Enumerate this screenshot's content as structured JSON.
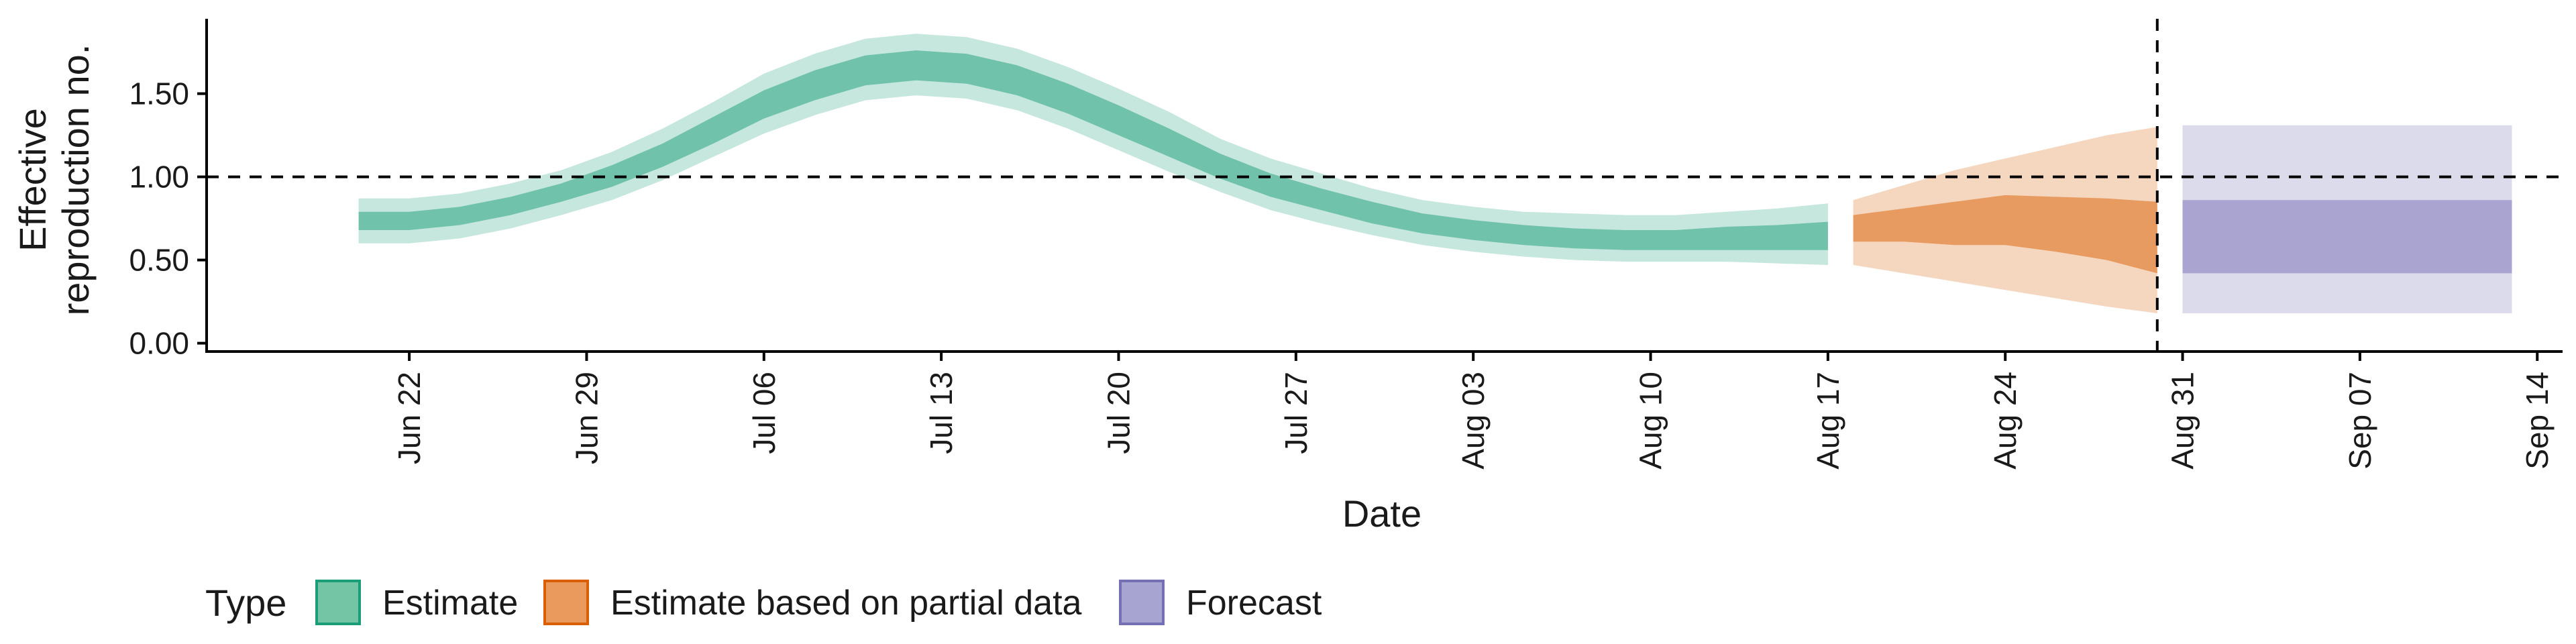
{
  "chart_data": {
    "type": "area",
    "xlabel": "Date",
    "ylabel_lines": [
      "Effective",
      "reproduction no."
    ],
    "x_ticks": [
      {
        "date": "2020-06-22",
        "label": "Jun 22"
      },
      {
        "date": "2020-06-29",
        "label": "Jun 29"
      },
      {
        "date": "2020-07-06",
        "label": "Jul 06"
      },
      {
        "date": "2020-07-13",
        "label": "Jul 13"
      },
      {
        "date": "2020-07-20",
        "label": "Jul 20"
      },
      {
        "date": "2020-07-27",
        "label": "Jul 27"
      },
      {
        "date": "2020-08-03",
        "label": "Aug 03"
      },
      {
        "date": "2020-08-10",
        "label": "Aug 10"
      },
      {
        "date": "2020-08-17",
        "label": "Aug 17"
      },
      {
        "date": "2020-08-24",
        "label": "Aug 24"
      },
      {
        "date": "2020-08-31",
        "label": "Aug 31"
      },
      {
        "date": "2020-09-07",
        "label": "Sep 07"
      },
      {
        "date": "2020-09-14",
        "label": "Sep 14"
      }
    ],
    "y_ticks": [
      {
        "value": 0.0,
        "label": "0.00"
      },
      {
        "value": 0.5,
        "label": "0.50"
      },
      {
        "value": 1.0,
        "label": "1.00"
      },
      {
        "value": 1.5,
        "label": "1.50"
      }
    ],
    "xlim": [
      "2020-06-14",
      "2020-09-15"
    ],
    "ylim": [
      -0.05,
      1.95
    ],
    "reference_hline": 1.0,
    "reference_vline": "2020-08-30",
    "grid": false,
    "legend": {
      "title": "Type",
      "position": "bottom-left",
      "entries": [
        {
          "label": "Estimate",
          "fill": "#74c4a6",
          "stroke": "#1b9e77"
        },
        {
          "label": "Estimate based on partial data",
          "fill": "#e99a5c",
          "stroke": "#d95f02"
        },
        {
          "label": "Forecast",
          "fill": "#a8a4d2",
          "stroke": "#7570b3"
        }
      ]
    },
    "series": [
      {
        "type": "Estimate",
        "fill": "#1b9e77",
        "x": [
          "2020-06-20",
          "2020-06-22",
          "2020-06-24",
          "2020-06-26",
          "2020-06-28",
          "2020-06-30",
          "2020-07-02",
          "2020-07-04",
          "2020-07-06",
          "2020-07-08",
          "2020-07-10",
          "2020-07-12",
          "2020-07-14",
          "2020-07-16",
          "2020-07-18",
          "2020-07-20",
          "2020-07-22",
          "2020-07-24",
          "2020-07-26",
          "2020-07-28",
          "2020-07-30",
          "2020-08-01",
          "2020-08-03",
          "2020-08-05",
          "2020-08-07",
          "2020-08-09",
          "2020-08-11",
          "2020-08-13",
          "2020-08-15",
          "2020-08-17"
        ],
        "median": [
          0.73,
          0.73,
          0.76,
          0.82,
          0.9,
          1.0,
          1.13,
          1.28,
          1.43,
          1.55,
          1.64,
          1.67,
          1.65,
          1.58,
          1.47,
          1.34,
          1.2,
          1.06,
          0.95,
          0.86,
          0.78,
          0.72,
          0.68,
          0.65,
          0.63,
          0.62,
          0.62,
          0.63,
          0.63,
          0.64
        ],
        "inner": [
          [
            0.68,
            0.79
          ],
          [
            0.68,
            0.79
          ],
          [
            0.71,
            0.82
          ],
          [
            0.77,
            0.88
          ],
          [
            0.85,
            0.96
          ],
          [
            0.94,
            1.07
          ],
          [
            1.06,
            1.2
          ],
          [
            1.2,
            1.36
          ],
          [
            1.35,
            1.52
          ],
          [
            1.46,
            1.64
          ],
          [
            1.55,
            1.73
          ],
          [
            1.58,
            1.76
          ],
          [
            1.56,
            1.74
          ],
          [
            1.49,
            1.67
          ],
          [
            1.38,
            1.56
          ],
          [
            1.25,
            1.43
          ],
          [
            1.12,
            1.29
          ],
          [
            0.99,
            1.14
          ],
          [
            0.88,
            1.02
          ],
          [
            0.8,
            0.93
          ],
          [
            0.72,
            0.85
          ],
          [
            0.66,
            0.78
          ],
          [
            0.62,
            0.74
          ],
          [
            0.59,
            0.71
          ],
          [
            0.57,
            0.69
          ],
          [
            0.56,
            0.68
          ],
          [
            0.56,
            0.68
          ],
          [
            0.56,
            0.7
          ],
          [
            0.56,
            0.71
          ],
          [
            0.56,
            0.73
          ]
        ],
        "outer": [
          [
            0.6,
            0.87
          ],
          [
            0.6,
            0.87
          ],
          [
            0.63,
            0.9
          ],
          [
            0.69,
            0.96
          ],
          [
            0.77,
            1.04
          ],
          [
            0.86,
            1.15
          ],
          [
            0.98,
            1.29
          ],
          [
            1.12,
            1.45
          ],
          [
            1.26,
            1.62
          ],
          [
            1.37,
            1.74
          ],
          [
            1.46,
            1.83
          ],
          [
            1.49,
            1.86
          ],
          [
            1.47,
            1.84
          ],
          [
            1.4,
            1.77
          ],
          [
            1.29,
            1.66
          ],
          [
            1.16,
            1.53
          ],
          [
            1.03,
            1.39
          ],
          [
            0.91,
            1.23
          ],
          [
            0.8,
            1.11
          ],
          [
            0.72,
            1.02
          ],
          [
            0.65,
            0.93
          ],
          [
            0.59,
            0.86
          ],
          [
            0.55,
            0.82
          ],
          [
            0.52,
            0.79
          ],
          [
            0.5,
            0.78
          ],
          [
            0.49,
            0.77
          ],
          [
            0.49,
            0.77
          ],
          [
            0.49,
            0.79
          ],
          [
            0.48,
            0.81
          ],
          [
            0.47,
            0.84
          ]
        ]
      },
      {
        "type": "Estimate based on partial data",
        "fill": "#d95f02",
        "x": [
          "2020-08-18",
          "2020-08-20",
          "2020-08-22",
          "2020-08-24",
          "2020-08-26",
          "2020-08-28",
          "2020-08-30"
        ],
        "inner": [
          [
            0.61,
            0.77
          ],
          [
            0.61,
            0.81
          ],
          [
            0.59,
            0.85
          ],
          [
            0.59,
            0.89
          ],
          [
            0.55,
            0.88
          ],
          [
            0.5,
            0.87
          ],
          [
            0.42,
            0.85
          ]
        ],
        "outer": [
          [
            0.47,
            0.86
          ],
          [
            0.42,
            0.95
          ],
          [
            0.37,
            1.04
          ],
          [
            0.32,
            1.11
          ],
          [
            0.27,
            1.18
          ],
          [
            0.22,
            1.25
          ],
          [
            0.18,
            1.3
          ]
        ]
      },
      {
        "type": "Forecast",
        "fill": "#7570b3",
        "x": [
          "2020-08-31",
          "2020-09-13"
        ],
        "inner": [
          [
            0.42,
            0.86
          ],
          [
            0.42,
            0.86
          ]
        ],
        "outer": [
          [
            0.18,
            1.31
          ],
          [
            0.18,
            1.31
          ]
        ]
      }
    ]
  }
}
